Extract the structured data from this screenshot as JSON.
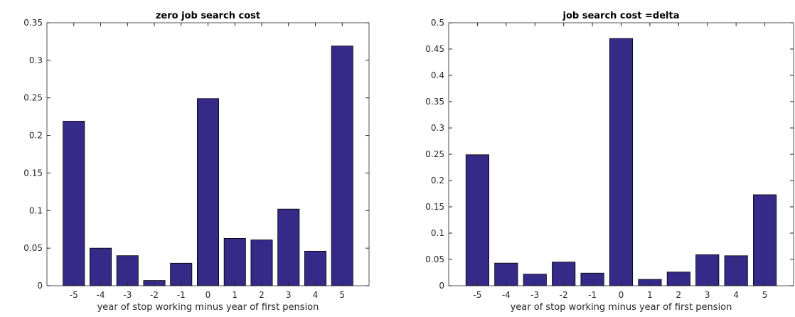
{
  "chart_data": [
    {
      "type": "bar",
      "title": "zero job search cost",
      "xlabel": "year of stop working minus year of first pension",
      "x": [
        -5,
        -4,
        -3,
        -2,
        -1,
        0,
        1,
        2,
        3,
        4,
        5
      ],
      "values": [
        0.219,
        0.05,
        0.04,
        0.007,
        0.03,
        0.249,
        0.063,
        0.061,
        0.102,
        0.046,
        0.319
      ],
      "color": "#352a87",
      "xlim": [
        -6,
        6
      ],
      "xticks": [
        -5,
        -4,
        -3,
        -2,
        -1,
        0,
        1,
        2,
        3,
        4,
        5
      ],
      "ylim": [
        0,
        0.35
      ],
      "yticks": [
        0,
        0.05,
        0.1,
        0.15,
        0.2,
        0.25,
        0.3,
        0.35
      ],
      "grid": false
    },
    {
      "type": "bar",
      "title": "job search cost =delta",
      "xlabel": "year of stop working minus year of first pension",
      "x": [
        -5,
        -4,
        -3,
        -2,
        -1,
        0,
        1,
        2,
        3,
        4,
        5
      ],
      "values": [
        0.249,
        0.043,
        0.022,
        0.045,
        0.024,
        0.47,
        0.012,
        0.026,
        0.059,
        0.057,
        0.173
      ],
      "color": "#352a87",
      "xlim": [
        -6,
        6
      ],
      "xticks": [
        -5,
        -4,
        -3,
        -2,
        -1,
        0,
        1,
        2,
        3,
        4,
        5
      ],
      "ylim": [
        0,
        0.5
      ],
      "yticks": [
        0,
        0.05,
        0.1,
        0.15,
        0.2,
        0.25,
        0.3,
        0.35,
        0.4,
        0.45,
        0.5
      ],
      "grid": false
    }
  ]
}
